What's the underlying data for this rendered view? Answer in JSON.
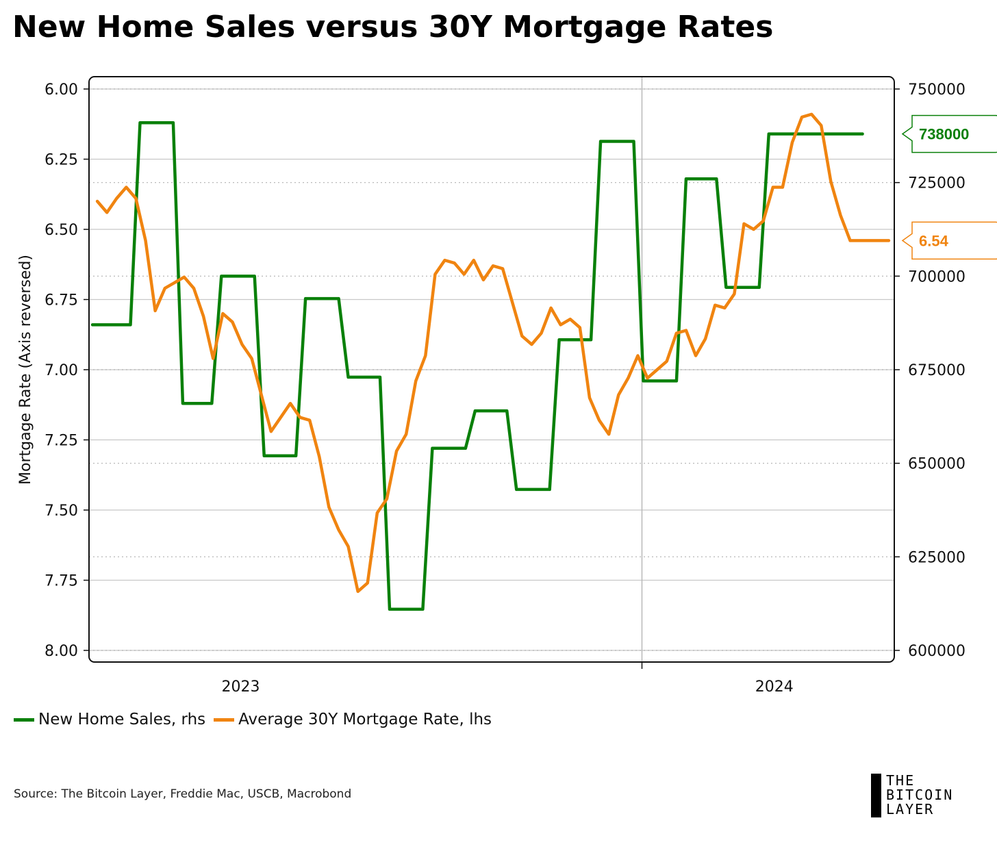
{
  "chart_data": {
    "type": "line",
    "title": "New Home Sales versus 30Y Mortgage Rates",
    "left_axis": {
      "label": "Mortgage Rate (Axis reversed)",
      "reversed": true,
      "ylim": [
        6.0,
        8.0
      ],
      "ticks": [
        "6.00",
        "6.25",
        "6.50",
        "6.75",
        "7.00",
        "7.25",
        "7.50",
        "7.75",
        "8.00"
      ]
    },
    "right_axis": {
      "label": "",
      "ylim": [
        600000,
        750000
      ],
      "ticks": [
        "750000",
        "725000",
        "700000",
        "675000",
        "650000",
        "625000",
        "600000"
      ]
    },
    "x_axis": {
      "ticks": [
        "2023",
        "2024"
      ],
      "range": [
        "2022-11-25",
        "2024-07-01"
      ]
    },
    "grid": true,
    "legend_position": "bottom-left",
    "series": [
      {
        "name": "New Home Sales, rhs",
        "axis": "right",
        "color": "#0a800a",
        "step": true,
        "x": [
          "2022-12-01",
          "2023-01-01",
          "2023-02-01",
          "2023-03-01",
          "2023-04-01",
          "2023-05-01",
          "2023-06-01",
          "2023-07-01",
          "2023-08-01",
          "2023-09-01",
          "2023-10-01",
          "2023-11-01",
          "2023-12-01",
          "2024-01-01",
          "2024-02-01",
          "2024-03-01",
          "2024-04-01",
          "2024-05-01",
          "2024-06-01"
        ],
        "values": [
          687000,
          741000,
          666000,
          700000,
          652000,
          694000,
          673000,
          611000,
          654000,
          664000,
          643000,
          683000,
          736000,
          672000,
          726000,
          697000,
          738000,
          738000,
          738000
        ]
      },
      {
        "name": "Average 30Y Mortgage Rate, lhs",
        "axis": "left",
        "color": "#f08410",
        "x": [
          "2022-12-01",
          "2022-12-08",
          "2022-12-15",
          "2022-12-22",
          "2022-12-29",
          "2023-01-05",
          "2023-01-12",
          "2023-01-19",
          "2023-01-26",
          "2023-02-02",
          "2023-02-09",
          "2023-02-16",
          "2023-02-23",
          "2023-03-02",
          "2023-03-09",
          "2023-03-16",
          "2023-03-23",
          "2023-03-30",
          "2023-04-06",
          "2023-04-13",
          "2023-04-20",
          "2023-04-27",
          "2023-05-04",
          "2023-05-11",
          "2023-05-18",
          "2023-05-25",
          "2023-06-01",
          "2023-06-08",
          "2023-06-15",
          "2023-06-22",
          "2023-06-29",
          "2023-07-06",
          "2023-07-13",
          "2023-07-20",
          "2023-07-27",
          "2023-08-03",
          "2023-08-10",
          "2023-08-17",
          "2023-08-24",
          "2023-08-31",
          "2023-09-07",
          "2023-09-14",
          "2023-09-21",
          "2023-09-28",
          "2023-10-05",
          "2023-10-12",
          "2023-10-19",
          "2023-10-26",
          "2023-11-02",
          "2023-11-09",
          "2023-11-16",
          "2023-11-23",
          "2023-11-30",
          "2023-12-07",
          "2023-12-14",
          "2023-12-21",
          "2023-12-28",
          "2024-01-04",
          "2024-01-11",
          "2024-01-18",
          "2024-01-25",
          "2024-02-01",
          "2024-02-08",
          "2024-02-15",
          "2024-02-22",
          "2024-02-29",
          "2024-03-07",
          "2024-03-14",
          "2024-03-21",
          "2024-03-28",
          "2024-04-04",
          "2024-04-11",
          "2024-04-18",
          "2024-04-25",
          "2024-05-02",
          "2024-05-09",
          "2024-05-16",
          "2024-05-23",
          "2024-05-30",
          "2024-06-06",
          "2024-06-13",
          "2024-06-20",
          "2024-06-27"
        ],
        "values": [
          6.4,
          6.44,
          6.39,
          6.35,
          6.39,
          6.54,
          6.79,
          6.71,
          6.69,
          6.67,
          6.71,
          6.81,
          6.96,
          6.8,
          6.83,
          6.91,
          6.96,
          7.09,
          7.22,
          7.17,
          7.12,
          7.17,
          7.18,
          7.31,
          7.49,
          7.57,
          7.63,
          7.79,
          7.76,
          7.51,
          7.46,
          7.29,
          7.23,
          7.04,
          6.95,
          6.66,
          6.61,
          6.62,
          6.66,
          6.61,
          6.68,
          6.63,
          6.64,
          6.76,
          6.88,
          6.91,
          6.87,
          6.78,
          6.84,
          6.82,
          6.85,
          7.1,
          7.18,
          7.23,
          7.09,
          7.03,
          6.95,
          7.03,
          7.0,
          6.97,
          6.87,
          6.86,
          6.95,
          6.89,
          6.77,
          6.78,
          6.73,
          6.48,
          6.5,
          6.47,
          6.35,
          6.35,
          6.19,
          6.1,
          6.09,
          6.13,
          6.33,
          6.45,
          6.54,
          6.54,
          6.54,
          6.54,
          6.54
        ]
      }
    ],
    "callouts": {
      "right_value": "738000",
      "left_value": "6.54"
    }
  },
  "legend": {
    "items": [
      {
        "label": "New Home Sales, rhs",
        "color": "#0a800a"
      },
      {
        "label": "Average 30Y Mortgage Rate, lhs",
        "color": "#f08410"
      }
    ]
  },
  "source": "Source: The Bitcoin Layer, Freddie Mac, USCB, Macrobond",
  "logo": {
    "line1": "THE",
    "line2": "BITCOIN",
    "line3": "LAYER"
  }
}
